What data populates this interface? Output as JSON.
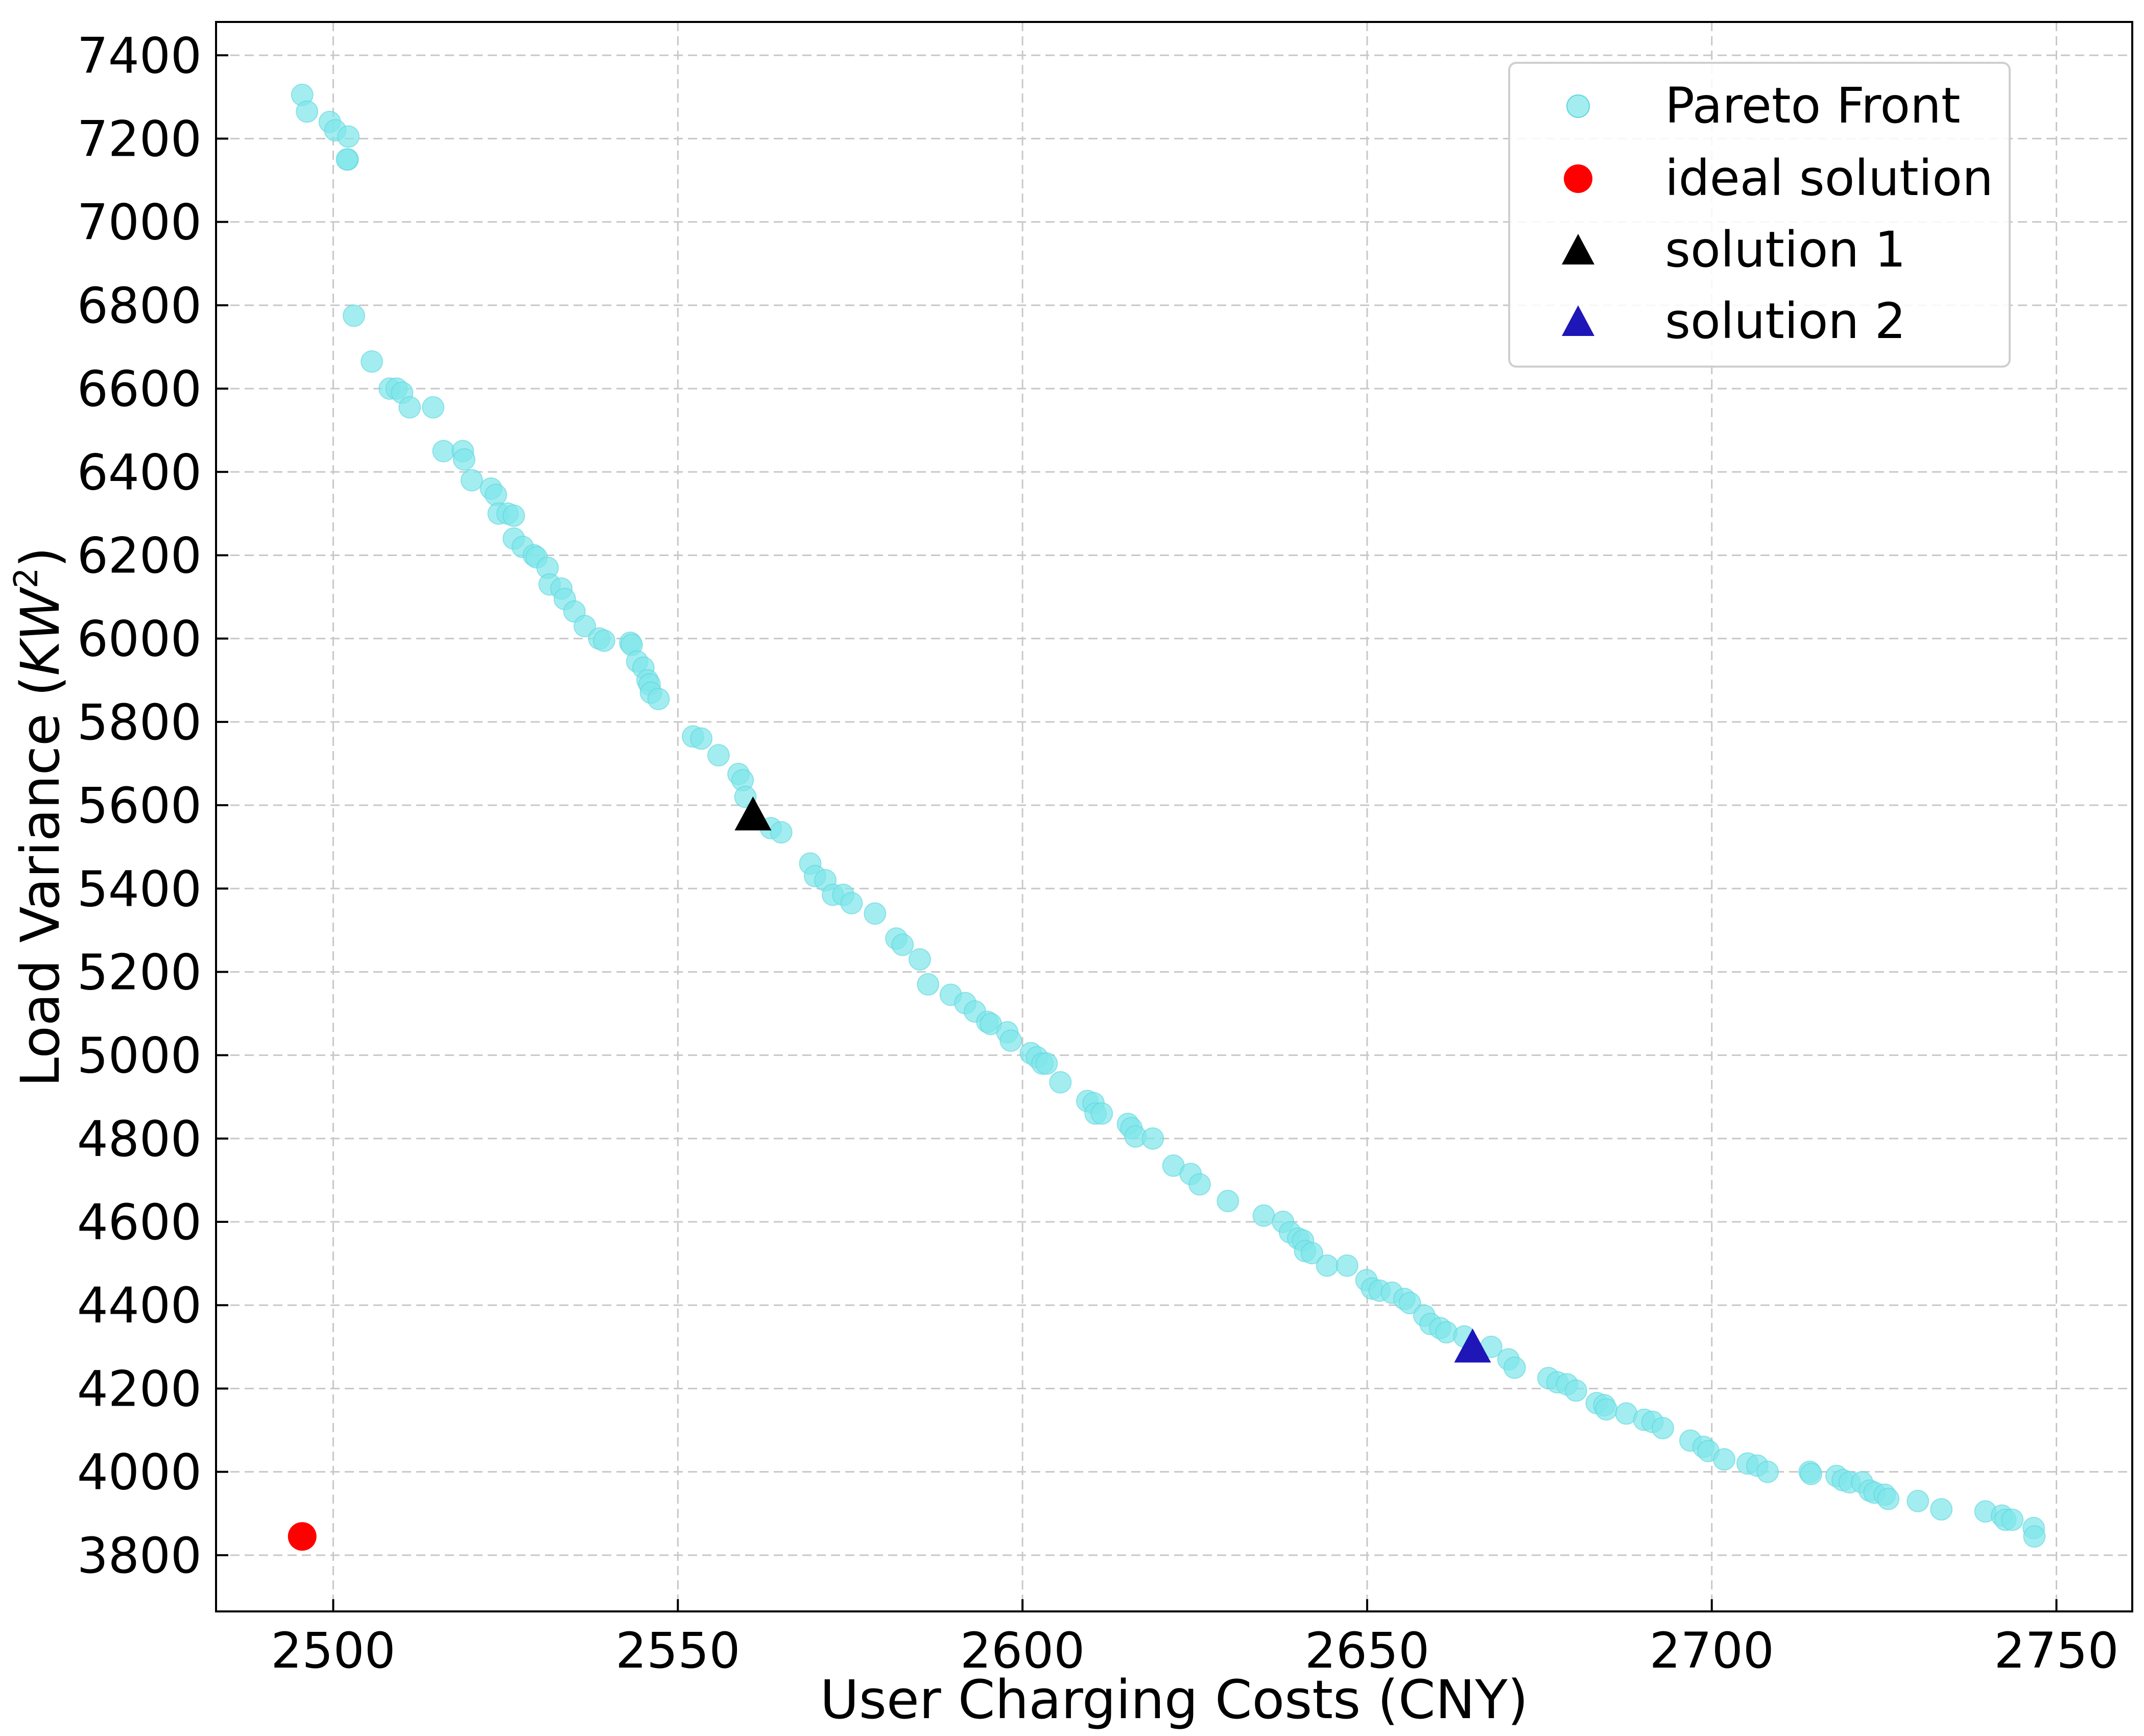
{
  "chart_data": {
    "type": "scatter",
    "xlabel": "User Charging Costs (CNY)",
    "ylabel_main": "Load Variance (",
    "ylabel_var": "KW",
    "ylabel_sup": "2",
    "ylabel_end": ")",
    "xlim": [
      2483,
      2761
    ],
    "ylim": [
      3665,
      7480
    ],
    "xticks": [
      2500,
      2550,
      2600,
      2650,
      2700,
      2750
    ],
    "yticks": [
      3800,
      4000,
      4200,
      4400,
      4600,
      4800,
      5000,
      5200,
      5400,
      5600,
      5800,
      6000,
      6200,
      6400,
      6600,
      6800,
      7000,
      7200,
      7400
    ],
    "grid": true,
    "legend_position": "top-right",
    "colors": {
      "pareto": "#7fe6ea",
      "pareto_edge": "#5ed6dc",
      "ideal": "#ff0000",
      "solution1": "#000000",
      "solution2": "#1f16b8",
      "grid": "#c8c8c8"
    },
    "series": [
      {
        "name": "Pareto Front",
        "marker": "circle",
        "points": [
          [
            2495.5,
            7305
          ],
          [
            2496.2,
            7265
          ],
          [
            2499.5,
            7240
          ],
          [
            2500.3,
            7220
          ],
          [
            2502.2,
            7205
          ],
          [
            2502.1,
            7150
          ],
          [
            2502.0,
            7150
          ],
          [
            2503.0,
            6775
          ],
          [
            2505.6,
            6665
          ],
          [
            2508.2,
            6600
          ],
          [
            2509.2,
            6600
          ],
          [
            2510.0,
            6590
          ],
          [
            2511.1,
            6555
          ],
          [
            2514.5,
            6555
          ],
          [
            2516.0,
            6450
          ],
          [
            2518.8,
            6450
          ],
          [
            2519.0,
            6430
          ],
          [
            2520.1,
            6380
          ],
          [
            2522.9,
            6360
          ],
          [
            2523.6,
            6345
          ],
          [
            2524.0,
            6300
          ],
          [
            2525.3,
            6300
          ],
          [
            2526.2,
            6295
          ],
          [
            2526.2,
            6240
          ],
          [
            2527.5,
            6220
          ],
          [
            2529.1,
            6200
          ],
          [
            2529.5,
            6195
          ],
          [
            2531.1,
            6170
          ],
          [
            2531.4,
            6130
          ],
          [
            2533.1,
            6120
          ],
          [
            2533.6,
            6095
          ],
          [
            2535.0,
            6065
          ],
          [
            2536.5,
            6030
          ],
          [
            2538.6,
            6000
          ],
          [
            2539.3,
            5995
          ],
          [
            2543.1,
            5990
          ],
          [
            2543.3,
            5985
          ],
          [
            2544.1,
            5945
          ],
          [
            2545.0,
            5930
          ],
          [
            2545.6,
            5900
          ],
          [
            2545.9,
            5890
          ],
          [
            2546.1,
            5870
          ],
          [
            2547.2,
            5855
          ],
          [
            2552.2,
            5765
          ],
          [
            2553.4,
            5760
          ],
          [
            2555.9,
            5720
          ],
          [
            2558.8,
            5675
          ],
          [
            2559.4,
            5660
          ],
          [
            2559.8,
            5620
          ],
          [
            2563.5,
            5545
          ],
          [
            2565.0,
            5535
          ],
          [
            2569.2,
            5460
          ],
          [
            2569.9,
            5430
          ],
          [
            2571.4,
            5420
          ],
          [
            2572.5,
            5385
          ],
          [
            2574.0,
            5385
          ],
          [
            2575.2,
            5365
          ],
          [
            2578.6,
            5340
          ],
          [
            2581.7,
            5280
          ],
          [
            2582.6,
            5265
          ],
          [
            2585.1,
            5230
          ],
          [
            2586.3,
            5170
          ],
          [
            2589.6,
            5145
          ],
          [
            2591.7,
            5125
          ],
          [
            2593.1,
            5105
          ],
          [
            2594.9,
            5080
          ],
          [
            2595.4,
            5075
          ],
          [
            2597.8,
            5055
          ],
          [
            2598.3,
            5035
          ],
          [
            2601.2,
            5005
          ],
          [
            2602.1,
            4995
          ],
          [
            2602.9,
            4980
          ],
          [
            2603.5,
            4980
          ],
          [
            2605.5,
            4935
          ],
          [
            2609.4,
            4890
          ],
          [
            2610.3,
            4885
          ],
          [
            2610.6,
            4860
          ],
          [
            2611.5,
            4860
          ],
          [
            2615.3,
            4835
          ],
          [
            2615.8,
            4825
          ],
          [
            2616.4,
            4805
          ],
          [
            2618.9,
            4800
          ],
          [
            2621.9,
            4735
          ],
          [
            2624.4,
            4715
          ],
          [
            2625.7,
            4690
          ],
          [
            2629.8,
            4650
          ],
          [
            2635.0,
            4615
          ],
          [
            2637.8,
            4600
          ],
          [
            2638.8,
            4575
          ],
          [
            2640.0,
            4560
          ],
          [
            2640.7,
            4555
          ],
          [
            2641.0,
            4530
          ],
          [
            2642.0,
            4525
          ],
          [
            2644.2,
            4495
          ],
          [
            2647.1,
            4495
          ],
          [
            2649.9,
            4460
          ],
          [
            2650.7,
            4440
          ],
          [
            2651.8,
            4435
          ],
          [
            2653.6,
            4430
          ],
          [
            2655.4,
            4415
          ],
          [
            2656.2,
            4405
          ],
          [
            2658.3,
            4375
          ],
          [
            2659.2,
            4355
          ],
          [
            2660.6,
            4345
          ],
          [
            2661.5,
            4335
          ],
          [
            2664.1,
            4325
          ],
          [
            2668.0,
            4300
          ],
          [
            2670.5,
            4270
          ],
          [
            2671.4,
            4250
          ],
          [
            2676.3,
            4225
          ],
          [
            2677.6,
            4215
          ],
          [
            2679.0,
            4210
          ],
          [
            2680.3,
            4195
          ],
          [
            2683.3,
            4165
          ],
          [
            2684.4,
            4160
          ],
          [
            2684.7,
            4150
          ],
          [
            2687.6,
            4140
          ],
          [
            2690.2,
            4125
          ],
          [
            2691.4,
            4120
          ],
          [
            2692.9,
            4105
          ],
          [
            2696.9,
            4075
          ],
          [
            2698.8,
            4060
          ],
          [
            2699.5,
            4050
          ],
          [
            2701.8,
            4030
          ],
          [
            2705.2,
            4020
          ],
          [
            2706.6,
            4015
          ],
          [
            2708.1,
            4000
          ],
          [
            2714.2,
            4000
          ],
          [
            2714.4,
            3995
          ],
          [
            2718.1,
            3990
          ],
          [
            2719.0,
            3980
          ],
          [
            2720.0,
            3975
          ],
          [
            2721.8,
            3975
          ],
          [
            2722.9,
            3955
          ],
          [
            2723.6,
            3950
          ],
          [
            2725.1,
            3945
          ],
          [
            2725.6,
            3935
          ],
          [
            2729.9,
            3930
          ],
          [
            2733.3,
            3910
          ],
          [
            2739.7,
            3905
          ],
          [
            2742.1,
            3895
          ],
          [
            2742.6,
            3885
          ],
          [
            2743.6,
            3885
          ],
          [
            2746.7,
            3865
          ],
          [
            2746.8,
            3845
          ]
        ]
      },
      {
        "name": "ideal solution",
        "marker": "circle",
        "points": [
          [
            2495.5,
            3845
          ]
        ]
      },
      {
        "name": "solution 1",
        "marker": "triangle",
        "points": [
          [
            2560.9,
            5577
          ]
        ]
      },
      {
        "name": "solution 2",
        "marker": "triangle",
        "points": [
          [
            2665.3,
            4300
          ]
        ]
      }
    ]
  }
}
